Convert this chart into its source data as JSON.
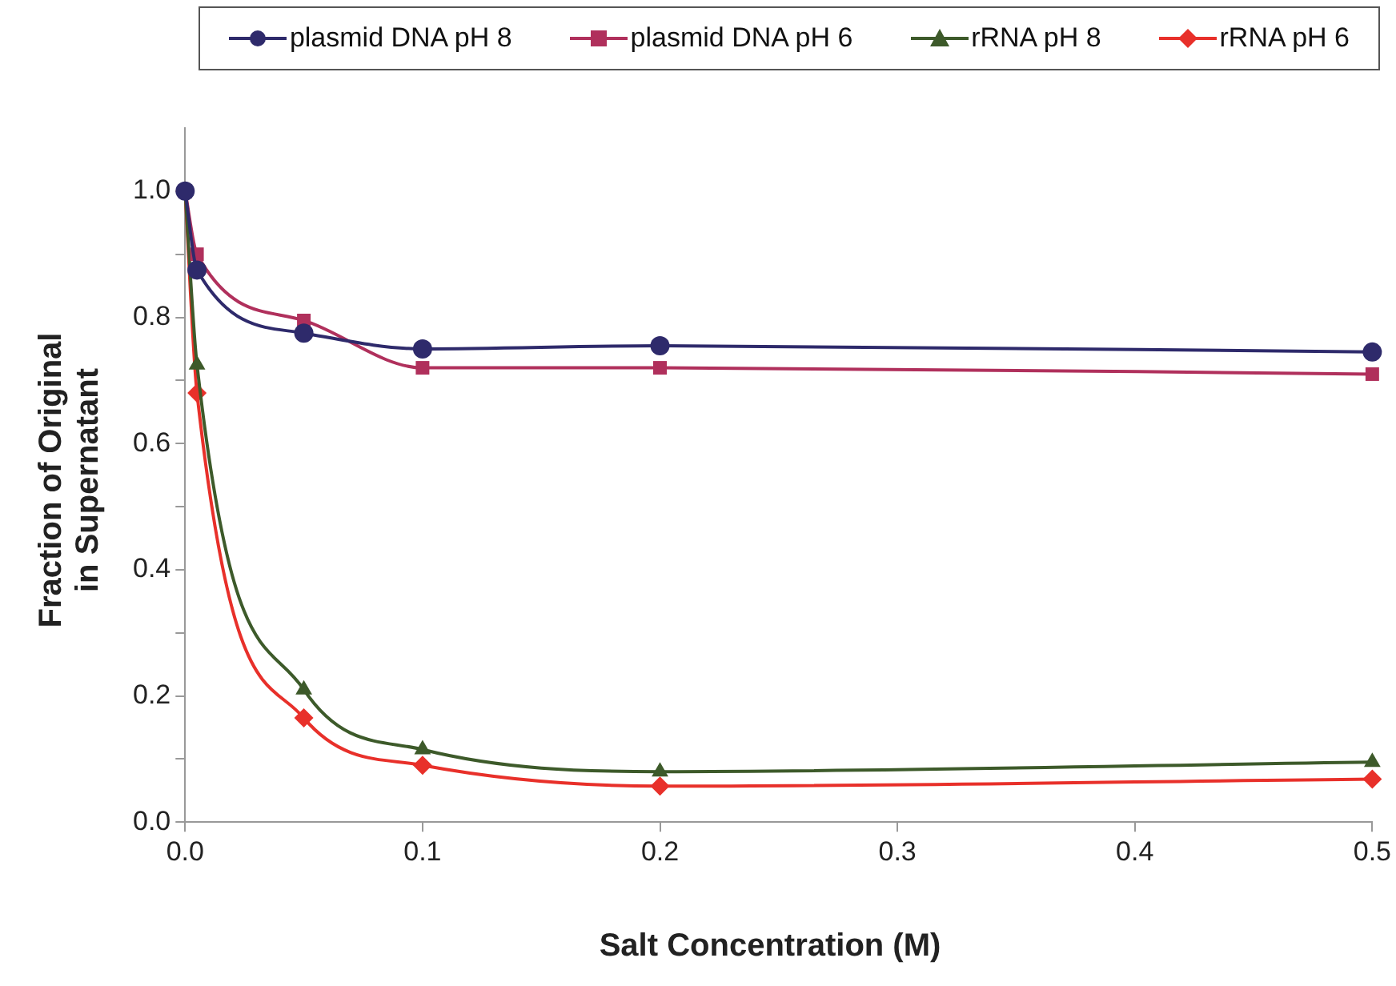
{
  "chart_data": {
    "type": "line",
    "xlabel": "Salt Concentration (M)",
    "ylabel": "Fraction of Original\nin Supernatant",
    "x": [
      0,
      0.005,
      0.05,
      0.1,
      0.2,
      0.5
    ],
    "series": [
      {
        "name": "plasmid DNA pH 8",
        "color": "#2e2a6b",
        "marker": "circle",
        "values": [
          1.0,
          0.875,
          0.775,
          0.75,
          0.755,
          0.745
        ]
      },
      {
        "name": "plasmid DNA pH 6",
        "color": "#b0305c",
        "marker": "square",
        "values": [
          1.0,
          0.9,
          0.795,
          0.72,
          0.72,
          0.71
        ]
      },
      {
        "name": "rRNA pH 8",
        "color": "#3d5a2a",
        "marker": "triangle",
        "values": [
          1.0,
          0.725,
          0.21,
          0.115,
          0.08,
          0.095
        ]
      },
      {
        "name": "rRNA pH 6",
        "color": "#e8302a",
        "marker": "diamond",
        "values": [
          1.0,
          0.68,
          0.165,
          0.09,
          0.057,
          0.068
        ]
      }
    ],
    "xlim": [
      0,
      0.5
    ],
    "xticks": [
      {
        "value": 0,
        "label": "0.0"
      },
      0.1,
      0.2,
      0.3,
      0.4,
      0.5
    ],
    "ylim": [
      0,
      1.1
    ],
    "yticks": [
      {
        "value": 0,
        "label": "0.0"
      },
      {
        "value": 0.1,
        "label": null
      },
      0.2,
      {
        "value": 0.3,
        "label": null
      },
      0.4,
      {
        "value": 0.5,
        "label": null
      },
      0.6,
      {
        "value": 0.7,
        "label": null
      },
      0.8,
      {
        "value": 0.9,
        "label": null
      },
      {
        "value": 1.0,
        "label": "1.0"
      }
    ],
    "grid": false,
    "legend": "top",
    "line_style": "solid"
  }
}
